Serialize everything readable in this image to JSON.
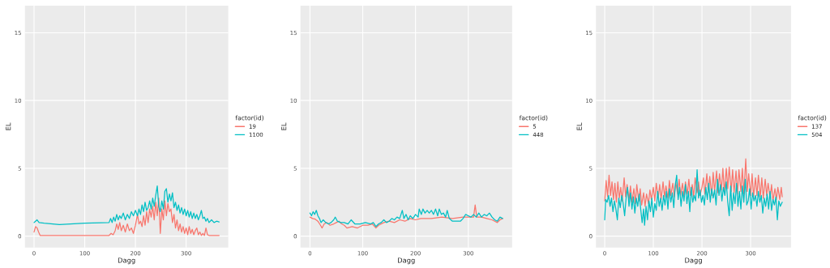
{
  "chart_data": [
    {
      "type": "line",
      "xlabel": "Dagg",
      "ylabel": "EL",
      "legend_title": "factor(id)",
      "xlim": [
        -18,
        383
      ],
      "ylim": [
        -0.85,
        17
      ],
      "xticks": [
        0,
        100,
        200,
        300
      ],
      "yticks": [
        0,
        5,
        10,
        15
      ],
      "grid": true,
      "legend": "right",
      "series": [
        {
          "name": "19",
          "color": "#f8766d",
          "x": [
            0,
            3,
            6,
            9,
            12,
            148,
            152,
            156,
            160,
            163,
            166,
            169,
            172,
            176,
            180,
            184,
            188,
            192,
            196,
            200,
            204,
            207,
            210,
            213,
            216,
            219,
            222,
            225,
            228,
            231,
            234,
            237,
            240,
            243,
            246,
            249,
            252,
            255,
            258,
            261,
            264,
            267,
            270,
            273,
            276,
            279,
            282,
            285,
            288,
            291,
            294,
            297,
            300,
            303,
            306,
            309,
            312,
            315,
            318,
            321,
            324,
            327,
            330,
            333,
            336,
            339,
            342,
            345,
            365
          ],
          "values": [
            0.3,
            0.7,
            0.6,
            0.3,
            0.05,
            0.05,
            0.2,
            0.1,
            0.4,
            0.9,
            0.5,
            1.0,
            0.4,
            0.8,
            0.3,
            0.9,
            0.4,
            0.6,
            0.2,
            0.8,
            1.6,
            0.9,
            1.1,
            0.7,
            1.5,
            0.8,
            1.8,
            1.0,
            2.0,
            1.4,
            2.2,
            1.2,
            2.5,
            1.5,
            2.8,
            0.2,
            2.0,
            1.2,
            2.6,
            1.5,
            2.4,
            1.8,
            2.0,
            1.0,
            1.6,
            0.6,
            1.2,
            0.4,
            0.9,
            0.3,
            0.7,
            0.2,
            0.6,
            0.1,
            0.7,
            0.2,
            0.5,
            0.1,
            0.4,
            0.6,
            0.1,
            0.3,
            0.05,
            0.2,
            0.05,
            0.6,
            0.1,
            0.05,
            0.05
          ]
        },
        {
          "name": "1100",
          "color": "#00bfc4",
          "x": [
            0,
            3,
            6,
            10,
            20,
            50,
            100,
            148,
            151,
            154,
            157,
            160,
            163,
            166,
            169,
            172,
            176,
            180,
            184,
            188,
            192,
            196,
            200,
            204,
            207,
            210,
            213,
            216,
            219,
            222,
            225,
            228,
            231,
            234,
            237,
            240,
            243,
            246,
            249,
            252,
            255,
            258,
            261,
            264,
            267,
            270,
            273,
            276,
            279,
            282,
            285,
            288,
            291,
            294,
            297,
            300,
            303,
            306,
            309,
            312,
            315,
            318,
            321,
            324,
            327,
            330,
            333,
            336,
            339,
            342,
            345,
            350,
            355,
            360,
            365
          ],
          "values": [
            1.0,
            1.1,
            1.2,
            1.0,
            0.95,
            0.85,
            0.95,
            1.0,
            1.3,
            1.0,
            1.4,
            1.1,
            1.6,
            1.2,
            1.5,
            1.3,
            1.7,
            1.2,
            1.6,
            1.3,
            1.8,
            1.5,
            1.9,
            1.5,
            2.0,
            1.6,
            2.3,
            1.8,
            2.5,
            1.9,
            2.1,
            2.6,
            2.0,
            2.8,
            2.2,
            3.0,
            3.7,
            2.2,
            1.8,
            2.6,
            2.0,
            3.3,
            3.5,
            2.5,
            3.1,
            2.6,
            3.2,
            2.1,
            2.5,
            1.9,
            2.3,
            1.7,
            2.1,
            1.6,
            2.0,
            1.5,
            1.9,
            1.4,
            1.8,
            1.3,
            1.7,
            1.3,
            1.6,
            1.2,
            1.5,
            1.9,
            1.3,
            1.4,
            1.1,
            1.3,
            1.0,
            1.2,
            1.0,
            1.1,
            1.05
          ]
        }
      ]
    },
    {
      "type": "line",
      "xlabel": "Dagg",
      "ylabel": "EL",
      "legend_title": "factor(id)",
      "xlim": [
        -18,
        383
      ],
      "ylim": [
        -0.85,
        17
      ],
      "xticks": [
        0,
        100,
        200,
        300
      ],
      "yticks": [
        0,
        5,
        10,
        15
      ],
      "grid": true,
      "legend": "right",
      "series": [
        {
          "name": "5",
          "color": "#f8766d",
          "x": [
            0,
            5,
            10,
            15,
            20,
            23,
            27,
            32,
            38,
            45,
            50,
            55,
            60,
            65,
            70,
            80,
            90,
            100,
            110,
            118,
            125,
            130,
            140,
            150,
            160,
            170,
            180,
            190,
            200,
            210,
            230,
            250,
            270,
            290,
            300,
            310,
            313,
            316,
            325,
            335,
            345,
            350,
            355,
            360,
            365
          ],
          "values": [
            1.4,
            1.3,
            1.25,
            1.1,
            0.8,
            0.6,
            0.9,
            1.0,
            0.8,
            0.9,
            1.0,
            1.1,
            0.9,
            0.8,
            0.6,
            0.7,
            0.6,
            0.8,
            0.8,
            0.9,
            0.6,
            0.8,
            1.0,
            1.1,
            1.0,
            1.2,
            1.1,
            1.3,
            1.2,
            1.3,
            1.3,
            1.4,
            1.3,
            1.4,
            1.4,
            1.4,
            2.3,
            1.4,
            1.4,
            1.3,
            1.2,
            1.1,
            1.0,
            1.2,
            1.3
          ]
        },
        {
          "name": "448",
          "color": "#00bfc4",
          "x": [
            0,
            3,
            6,
            9,
            12,
            15,
            18,
            21,
            25,
            30,
            35,
            40,
            45,
            48,
            52,
            58,
            65,
            72,
            78,
            85,
            95,
            105,
            115,
            120,
            125,
            130,
            135,
            140,
            145,
            150,
            155,
            160,
            165,
            170,
            175,
            178,
            182,
            186,
            190,
            195,
            200,
            205,
            207,
            211,
            214,
            218,
            222,
            226,
            230,
            234,
            238,
            242,
            245,
            249,
            253,
            257,
            260,
            264,
            270,
            285,
            290,
            295,
            300,
            305,
            310,
            315,
            320,
            325,
            330,
            335,
            340,
            345,
            350,
            355,
            360,
            365
          ],
          "values": [
            1.7,
            1.5,
            1.8,
            1.6,
            1.9,
            1.5,
            1.3,
            1.0,
            1.2,
            1.0,
            0.9,
            1.0,
            1.2,
            1.4,
            1.1,
            1.0,
            1.0,
            0.9,
            1.2,
            0.9,
            0.9,
            1.0,
            0.9,
            1.0,
            0.7,
            0.9,
            1.0,
            1.2,
            1.0,
            1.1,
            1.3,
            1.2,
            1.4,
            1.3,
            1.9,
            1.3,
            1.6,
            1.2,
            1.5,
            1.3,
            1.6,
            1.4,
            2.0,
            1.6,
            2.0,
            1.7,
            1.9,
            1.7,
            1.9,
            1.6,
            2.0,
            1.5,
            2.0,
            1.6,
            1.7,
            1.4,
            1.9,
            1.3,
            1.1,
            1.1,
            1.3,
            1.6,
            1.5,
            1.4,
            1.6,
            1.4,
            1.7,
            1.4,
            1.6,
            1.5,
            1.7,
            1.4,
            1.2,
            1.1,
            1.4,
            1.3
          ]
        }
      ]
    },
    {
      "type": "line",
      "xlabel": "Dagg",
      "ylabel": "EL",
      "legend_title": "factor(id)",
      "xlim": [
        -18,
        383
      ],
      "ylim": [
        -0.85,
        17
      ],
      "xticks": [
        0,
        100,
        200,
        300
      ],
      "yticks": [
        0,
        5,
        10,
        15
      ],
      "grid": true,
      "legend": "right",
      "series": [
        {
          "name": "137",
          "color": "#f8766d",
          "x": [
            0,
            3,
            6,
            9,
            12,
            15,
            18,
            21,
            24,
            27,
            30,
            33,
            36,
            40,
            43,
            46,
            50,
            53,
            56,
            60,
            63,
            66,
            70,
            73,
            76,
            80,
            83,
            86,
            90,
            93,
            96,
            100,
            103,
            106,
            110,
            113,
            116,
            120,
            123,
            126,
            130,
            133,
            136,
            140,
            143,
            146,
            150,
            153,
            156,
            160,
            163,
            166,
            170,
            173,
            176,
            180,
            183,
            186,
            190,
            193,
            196,
            200,
            203,
            206,
            210,
            213,
            216,
            220,
            223,
            226,
            230,
            233,
            236,
            240,
            243,
            246,
            250,
            253,
            256,
            260,
            263,
            266,
            270,
            273,
            276,
            280,
            283,
            286,
            290,
            293,
            296,
            300,
            303,
            306,
            310,
            313,
            316,
            320,
            323,
            326,
            330,
            333,
            336,
            340,
            343,
            346,
            350,
            353,
            356,
            360,
            363,
            365
          ],
          "values": [
            2.6,
            4.1,
            2.9,
            4.5,
            3.0,
            4.0,
            2.7,
            3.9,
            2.5,
            4.0,
            2.8,
            3.6,
            2.6,
            4.3,
            2.9,
            3.8,
            2.7,
            3.7,
            2.5,
            3.5,
            2.4,
            3.8,
            2.6,
            3.5,
            2.3,
            3.2,
            2.2,
            3.1,
            2.4,
            3.4,
            2.7,
            3.6,
            2.6,
            3.9,
            2.8,
            3.8,
            2.7,
            4.0,
            2.9,
            3.7,
            2.8,
            4.1,
            3.0,
            3.9,
            2.9,
            4.0,
            3.1,
            4.2,
            3.0,
            3.9,
            2.9,
            4.0,
            3.1,
            4.2,
            3.0,
            3.8,
            2.9,
            4.3,
            3.2,
            4.0,
            3.0,
            3.6,
            4.3,
            3.1,
            4.6,
            3.2,
            4.4,
            3.0,
            4.7,
            3.3,
            4.8,
            3.2,
            4.6,
            3.4,
            5.0,
            3.2,
            5.0,
            3.5,
            5.1,
            3.3,
            4.9,
            3.2,
            4.8,
            3.1,
            4.9,
            3.3,
            5.0,
            3.1,
            5.7,
            3.3,
            4.6,
            3.0,
            4.6,
            2.9,
            4.3,
            3.0,
            4.5,
            2.9,
            4.3,
            2.8,
            4.2,
            3.0,
            3.9,
            2.8,
            3.8,
            2.6,
            3.5,
            2.7,
            3.6,
            2.7,
            3.6,
            2.9
          ]
        },
        {
          "name": "504",
          "color": "#00bfc4",
          "x": [
            0,
            2,
            5,
            8,
            11,
            14,
            17,
            20,
            23,
            26,
            29,
            32,
            35,
            38,
            41,
            44,
            47,
            50,
            53,
            56,
            59,
            62,
            65,
            68,
            71,
            74,
            77,
            80,
            82,
            85,
            88,
            91,
            94,
            97,
            100,
            103,
            106,
            109,
            112,
            115,
            118,
            121,
            124,
            127,
            130,
            133,
            136,
            139,
            142,
            145,
            148,
            151,
            154,
            157,
            160,
            163,
            166,
            169,
            172,
            175,
            178,
            181,
            184,
            187,
            190,
            193,
            196,
            199,
            202,
            205,
            208,
            211,
            214,
            217,
            220,
            223,
            226,
            229,
            232,
            235,
            238,
            241,
            244,
            247,
            250,
            253,
            256,
            259,
            262,
            265,
            268,
            271,
            274,
            277,
            280,
            283,
            286,
            289,
            292,
            295,
            298,
            301,
            304,
            307,
            310,
            313,
            316,
            319,
            322,
            325,
            328,
            331,
            334,
            337,
            340,
            343,
            346,
            349,
            352,
            355,
            358,
            361,
            365
          ],
          "values": [
            1.2,
            2.7,
            2.5,
            3.0,
            2.2,
            2.8,
            1.8,
            2.6,
            2.0,
            1.2,
            2.8,
            2.1,
            3.0,
            2.4,
            1.5,
            2.8,
            3.6,
            2.2,
            3.2,
            2.0,
            2.9,
            1.7,
            2.8,
            2.2,
            3.1,
            2.0,
            1.0,
            2.0,
            0.8,
            2.2,
            1.2,
            2.6,
            1.8,
            2.8,
            1.4,
            2.4,
            1.9,
            3.3,
            2.2,
            2.8,
            1.9,
            3.0,
            2.3,
            3.3,
            2.0,
            3.5,
            2.5,
            3.2,
            2.1,
            3.7,
            4.5,
            2.7,
            3.6,
            2.2,
            3.3,
            2.6,
            3.8,
            2.4,
            3.3,
            1.8,
            3.6,
            2.5,
            3.0,
            2.6,
            4.9,
            2.8,
            3.4,
            2.5,
            3.0,
            2.3,
            3.6,
            2.7,
            3.9,
            2.5,
            3.5,
            2.8,
            3.4,
            2.3,
            4.2,
            3.0,
            3.8,
            2.6,
            3.6,
            3.0,
            4.0,
            2.5,
            1.5,
            3.7,
            1.9,
            3.2,
            2.4,
            3.9,
            2.2,
            3.3,
            2.0,
            3.7,
            2.5,
            4.2,
            2.3,
            2.6,
            3.5,
            2.0,
            3.2,
            2.6,
            3.0,
            2.2,
            3.3,
            2.5,
            3.0,
            1.7,
            2.8,
            2.2,
            3.1,
            2.0,
            3.3,
            1.9,
            2.7,
            2.3,
            2.9,
            1.2,
            2.6,
            2.2,
            2.5
          ]
        }
      ]
    }
  ]
}
